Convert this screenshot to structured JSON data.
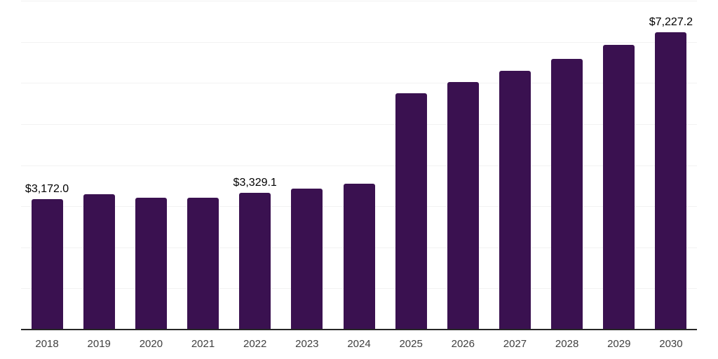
{
  "chart": {
    "background_color": "#ffffff",
    "bar_color": "#3a1150",
    "gridline_color": "#f2f2f2",
    "axis_color": "#262626",
    "data_label_color": "#000000",
    "tick_label_color": "#404040"
  },
  "chart_data": {
    "type": "bar",
    "title": "",
    "xlabel": "",
    "ylabel": "",
    "categories": [
      "2018",
      "2019",
      "2020",
      "2021",
      "2022",
      "2023",
      "2024",
      "2025",
      "2026",
      "2027",
      "2028",
      "2029",
      "2030"
    ],
    "values": [
      3172.0,
      3290,
      3210,
      3210,
      3329.1,
      3430,
      3550,
      5750,
      6020,
      6300,
      6585,
      6920,
      7227.2
    ],
    "data_labels": [
      "$3,172.0",
      "",
      "",
      "",
      "$3,329.1",
      "",
      "",
      "",
      "",
      "",
      "",
      "",
      "$7,227.2"
    ],
    "ylim": [
      0,
      8000
    ],
    "gridline_step": 1000,
    "grid": "horizontal-only",
    "y_axis_tick_labels": "none",
    "legend": "none"
  }
}
